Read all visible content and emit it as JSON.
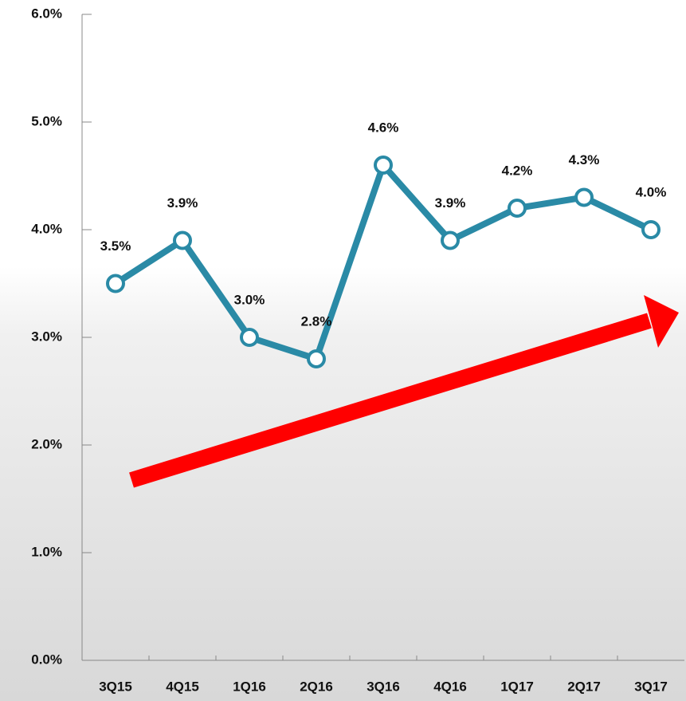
{
  "chart_data": {
    "type": "line",
    "categories": [
      "3Q15",
      "4Q15",
      "1Q16",
      "2Q16",
      "3Q16",
      "4Q16",
      "1Q17",
      "2Q17",
      "3Q17"
    ],
    "values": [
      3.5,
      3.9,
      3.0,
      2.8,
      4.6,
      3.9,
      4.2,
      4.3,
      4.0
    ],
    "value_labels": [
      "3.5%",
      "3.9%",
      "3.0%",
      "2.8%",
      "4.6%",
      "3.9%",
      "4.2%",
      "4.3%",
      "4.0%"
    ],
    "color": "#2a8aa6",
    "ylim": [
      0,
      6
    ],
    "yticks": [
      {
        "value": 0,
        "label": "0.0%"
      },
      {
        "value": 1,
        "label": "1.0%"
      },
      {
        "value": 2,
        "label": "2.0%"
      },
      {
        "value": 3,
        "label": "3.0%"
      },
      {
        "value": 4,
        "label": "4.0%"
      },
      {
        "value": 5,
        "label": "5.0%"
      },
      {
        "value": 6,
        "label": "6.0%"
      }
    ]
  }
}
